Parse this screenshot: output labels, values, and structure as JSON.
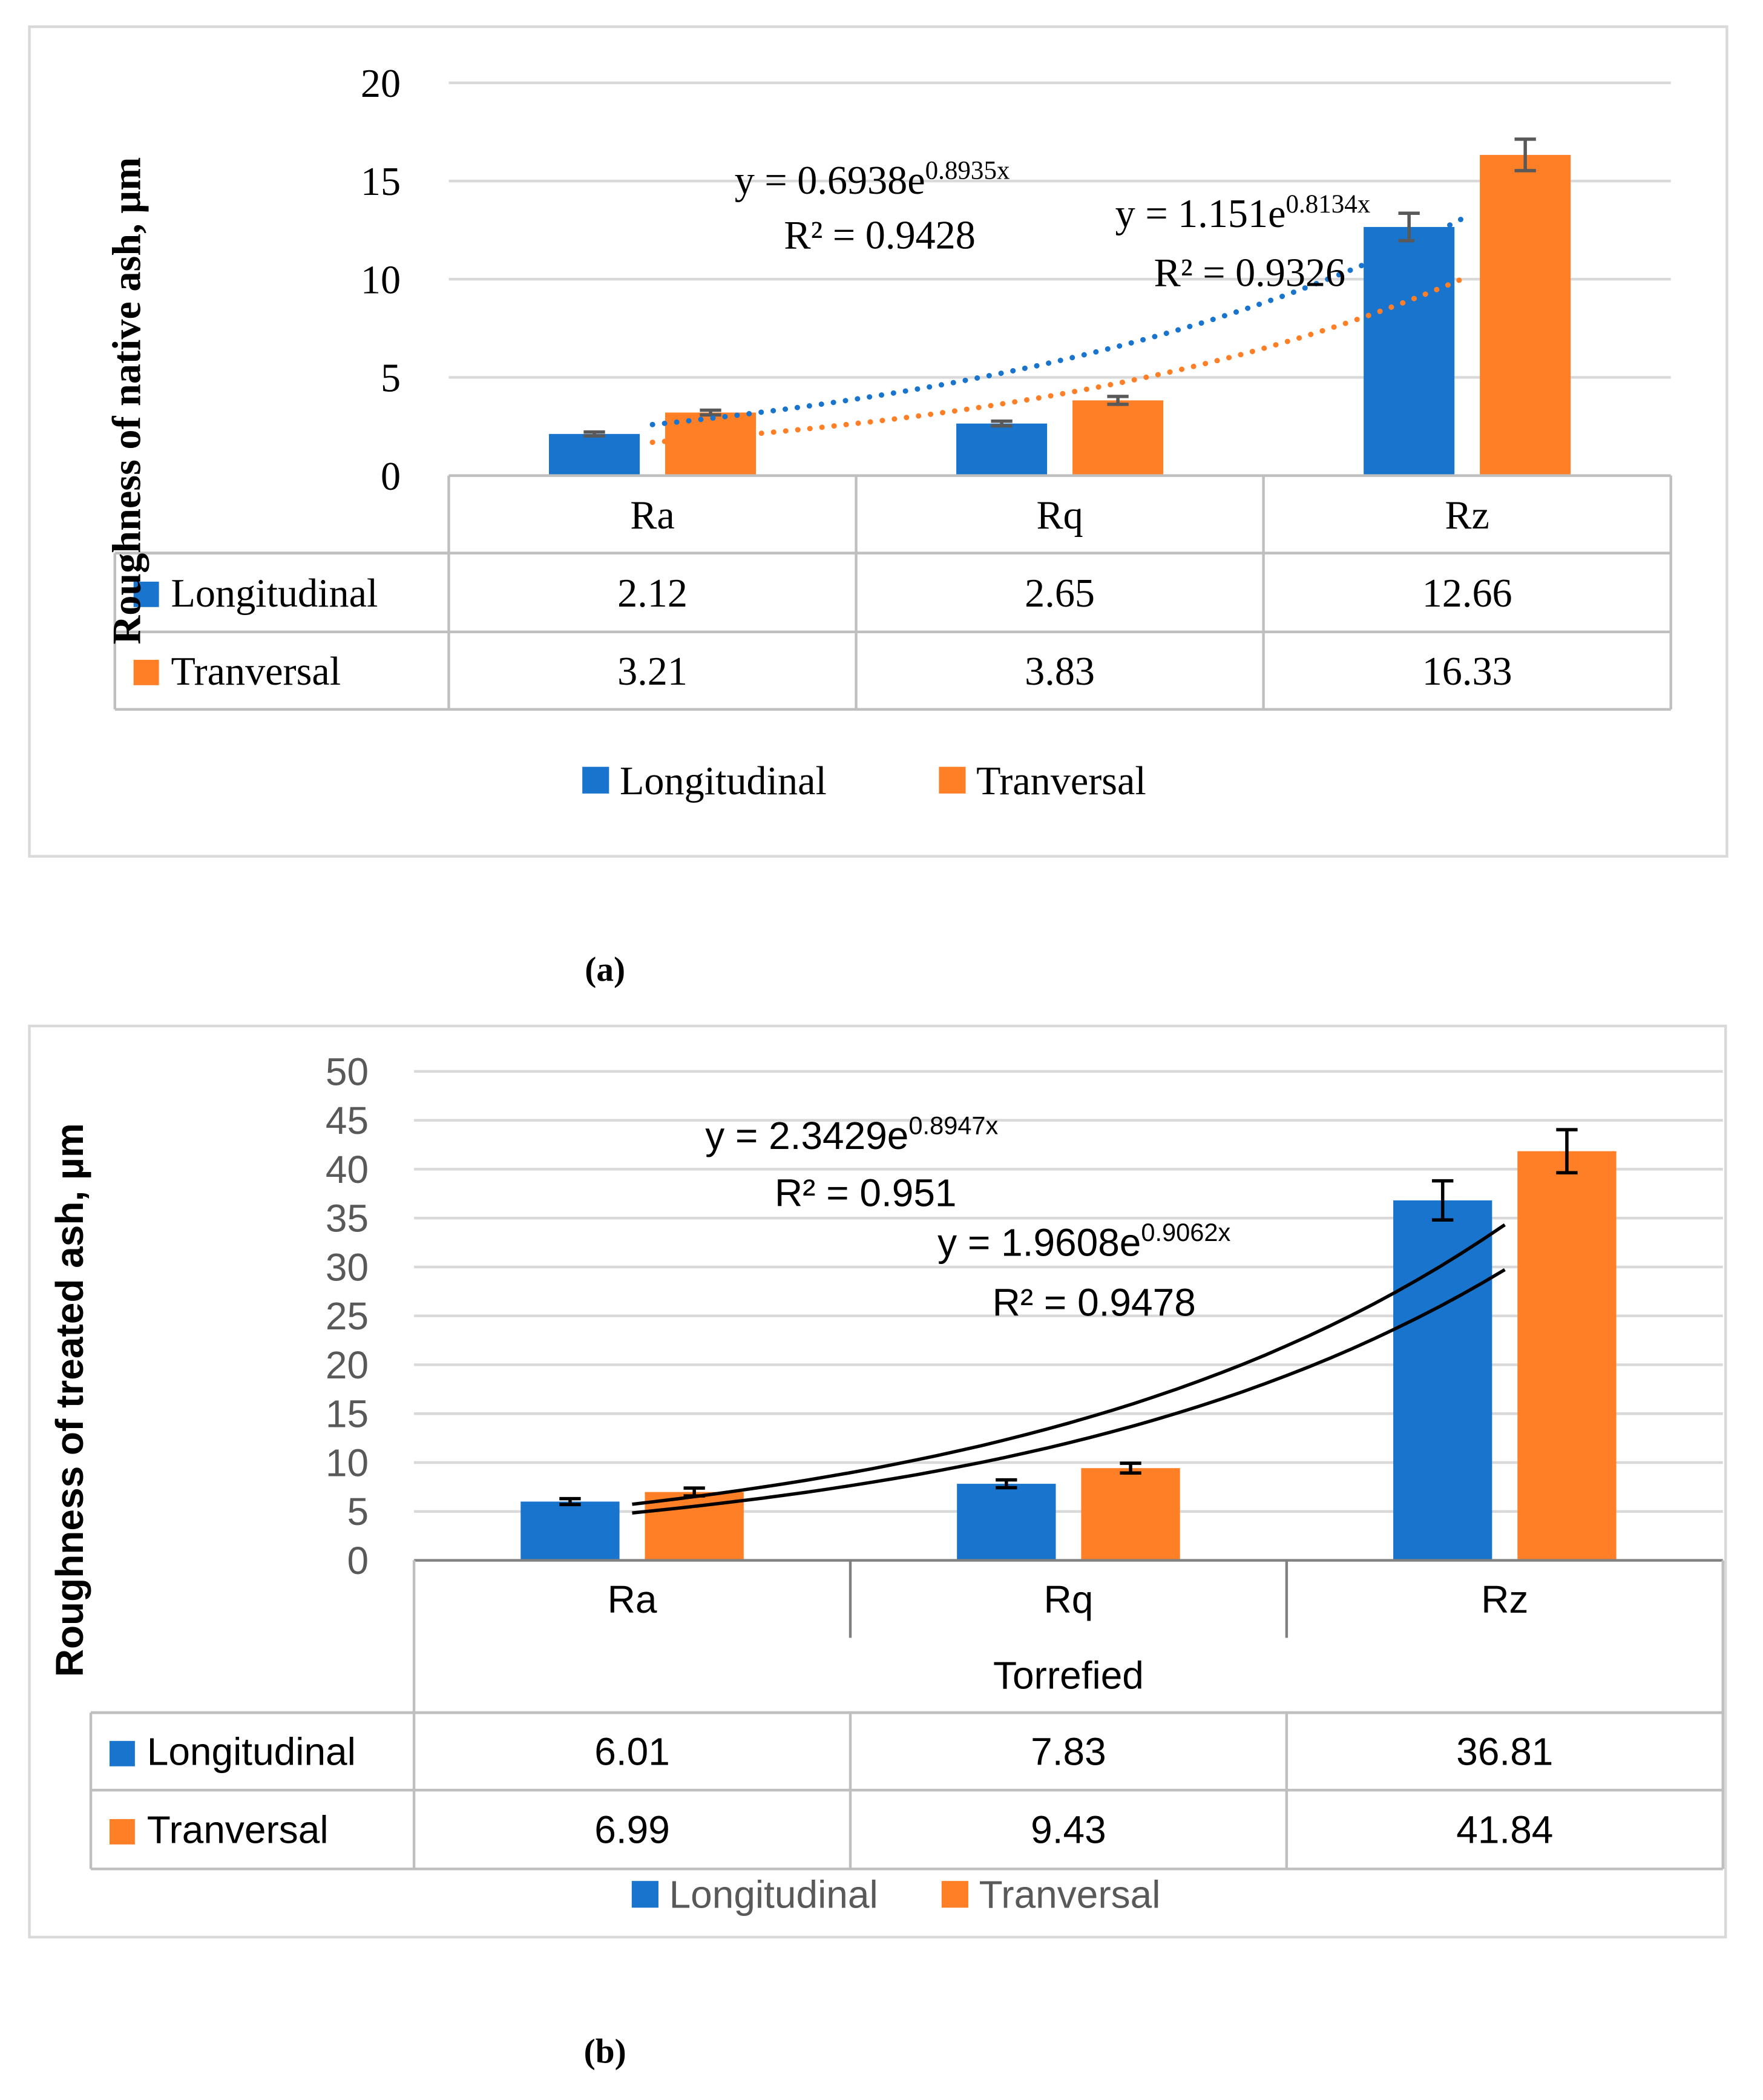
{
  "chart_data": [
    {
      "type": "bar",
      "panel_caption": "(a)",
      "ylabel": "Roughness of native ash, µm",
      "ylim": [
        0,
        20
      ],
      "yticks": [
        0,
        5,
        10,
        15,
        20
      ],
      "grid": true,
      "categories": [
        "Ra",
        "Rq",
        "Rz"
      ],
      "group_label": "",
      "series": [
        {
          "name": "Longitudinal",
          "color": "#1874CD",
          "values": [
            2.12,
            2.65,
            12.66
          ],
          "errors": [
            0.1,
            0.12,
            0.7
          ]
        },
        {
          "name": "Tranversal",
          "color": "#FF7F27",
          "values": [
            3.21,
            3.83,
            16.33
          ],
          "errors": [
            0.12,
            0.2,
            0.8
          ]
        }
      ],
      "data_table": true,
      "legend": "bottom",
      "trendlines": [
        {
          "series": "Longitudinal",
          "type": "exponential",
          "style": "dotted",
          "a": 1.151,
          "b": 0.8134,
          "equation": "y = 1.151e",
          "exponent": "0.8134x",
          "r2_label": "R² = 0.9326"
        },
        {
          "series": "Tranversal",
          "type": "exponential",
          "style": "dotted",
          "a": 0.6938,
          "b": 0.8935,
          "equation": "y = 0.6938e",
          "exponent": "0.8935x",
          "r2_label": "R² = 0.9428"
        }
      ]
    },
    {
      "type": "bar",
      "panel_caption": "(b)",
      "ylabel": "Roughness of treated ash, µm",
      "ylim": [
        0,
        50
      ],
      "yticks": [
        0,
        5,
        10,
        15,
        20,
        25,
        30,
        35,
        40,
        45,
        50
      ],
      "grid": true,
      "categories": [
        "Ra",
        "Rq",
        "Rz"
      ],
      "group_label": "Torrefied",
      "series": [
        {
          "name": "Longitudinal",
          "color": "#1874CD",
          "values": [
            6.01,
            7.83,
            36.81
          ],
          "errors": [
            0.3,
            0.4,
            2.0
          ]
        },
        {
          "name": "Tranversal",
          "color": "#FF7F27",
          "values": [
            6.99,
            9.43,
            41.84
          ],
          "errors": [
            0.4,
            0.5,
            2.2
          ]
        }
      ],
      "data_table": true,
      "legend": "bottom",
      "trendlines": [
        {
          "series": "Tranversal",
          "type": "exponential",
          "style": "solid",
          "a": 2.3429,
          "b": 0.8947,
          "equation": "y = 2.3429e",
          "exponent": "0.8947x",
          "r2_label": "R² = 0.951"
        },
        {
          "series": "Longitudinal",
          "type": "exponential",
          "style": "solid",
          "a": 1.9608,
          "b": 0.9062,
          "equation": "y = 1.9608e",
          "exponent": "0.9062x",
          "r2_label": "R² = 0.9478"
        }
      ]
    }
  ]
}
